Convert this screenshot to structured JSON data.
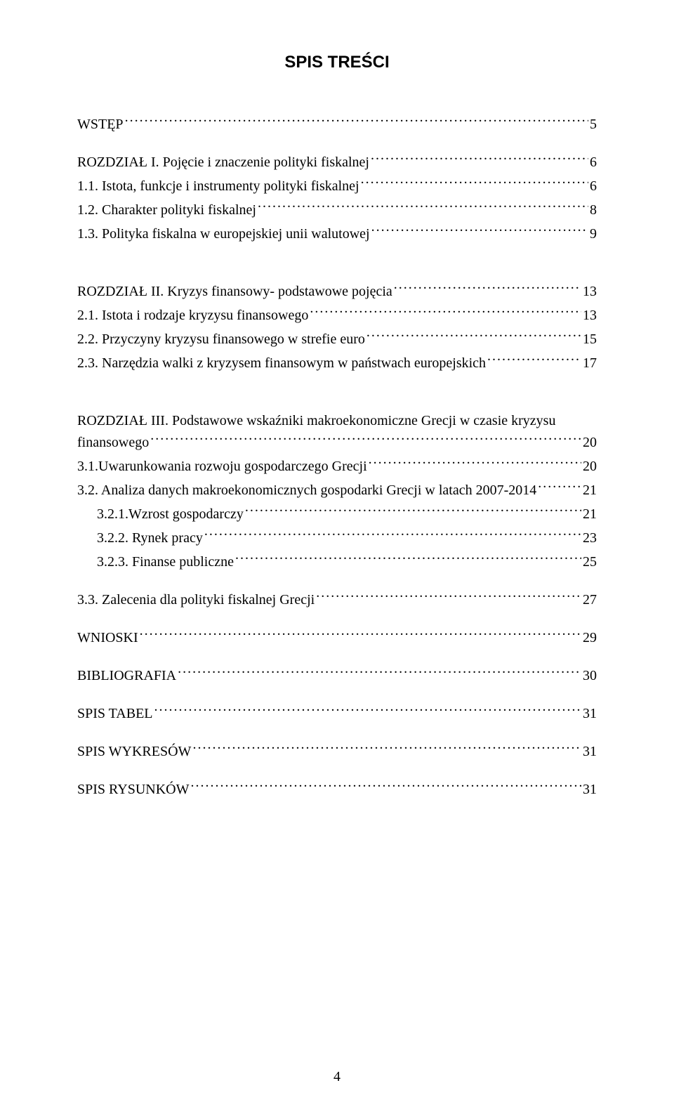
{
  "title": "SPIS TREŚCI",
  "page_number": "4",
  "toc": {
    "wstep": {
      "label": "WSTĘP",
      "page": "5"
    },
    "r1": {
      "label": "ROZDZIAŁ I. Pojęcie i znaczenie polityki fiskalnej",
      "page": "6"
    },
    "r1_1": {
      "label": "1.1. Istota, funkcje i instrumenty polityki fiskalnej",
      "page": "6"
    },
    "r1_2": {
      "label": "1.2. Charakter polityki fiskalnej",
      "page": "8"
    },
    "r1_3": {
      "label": "1.3. Polityka fiskalna w europejskiej unii walutowej",
      "page": "9"
    },
    "r2": {
      "label": "ROZDZIAŁ II. Kryzys finansowy- podstawowe pojęcia",
      "page": "13"
    },
    "r2_1": {
      "label": "2.1. Istota i rodzaje kryzysu finansowego",
      "page": "13"
    },
    "r2_2": {
      "label": "2.2. Przyczyny kryzysu finansowego w strefie euro",
      "page": "15"
    },
    "r2_3": {
      "label": "2.3. Narzędzia walki z kryzysem finansowym w państwach europejskich",
      "page": "17"
    },
    "r3_a": {
      "label_line1": "ROZDZIAŁ III. Podstawowe wskaźniki makroekonomiczne Grecji w czasie kryzysu",
      "label_line2": "finansowego",
      "page": "20"
    },
    "r3_1": {
      "label": "3.1.Uwarunkowania rozwoju gospodarczego Grecji",
      "page": "20"
    },
    "r3_2": {
      "label": "3.2. Analiza danych makroekonomicznych gospodarki Grecji w latach 2007-2014",
      "page": "21"
    },
    "r3_2_1": {
      "label": "3.2.1.Wzrost gospodarczy",
      "page": "21"
    },
    "r3_2_2": {
      "label": "3.2.2. Rynek pracy",
      "page": "23"
    },
    "r3_2_3": {
      "label": "3.2.3. Finanse publiczne",
      "page": "25"
    },
    "r3_3": {
      "label": "3.3. Zalecenia dla polityki fiskalnej Grecji",
      "page": "27"
    },
    "wnioski": {
      "label": "WNIOSKI",
      "page": "29"
    },
    "biblio": {
      "label": "BIBLIOGRAFIA",
      "page": "30"
    },
    "spis_tabel": {
      "label": "SPIS TABEL",
      "page": "31"
    },
    "spis_wykresow": {
      "label": "SPIS WYKRESÓW",
      "page": "31"
    },
    "spis_rysunkow": {
      "label": "SPIS RYSUNKÓW",
      "page": "31"
    }
  }
}
